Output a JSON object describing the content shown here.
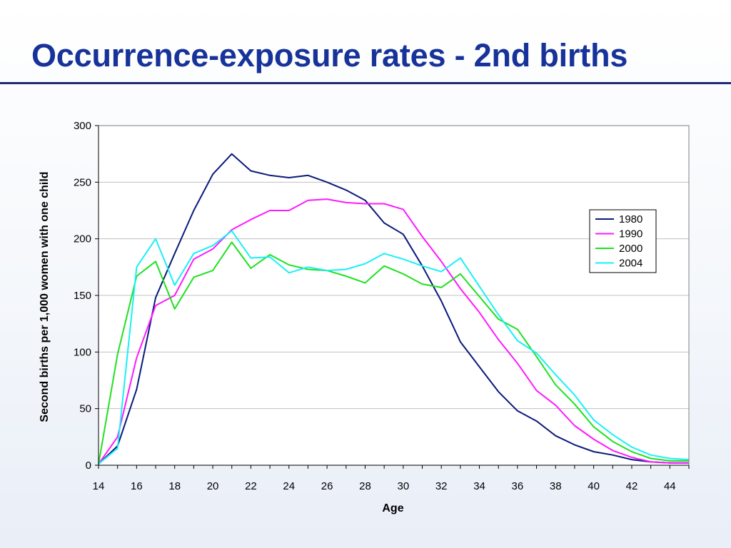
{
  "slide": {
    "title": "Occurrence-exposure rates - 2nd births"
  },
  "colors": {
    "title": "#17339a",
    "rule": "#1c2b78",
    "series_1980": "#0a1a7a",
    "series_1990": "#ff19ff",
    "series_2000": "#1fe11f",
    "series_2004": "#19f0f5"
  },
  "chart_data": {
    "type": "line",
    "title": "",
    "xlabel": "Age",
    "ylabel": "Second births per 1,000 women with one child",
    "xlim": [
      14,
      45
    ],
    "ylim": [
      0,
      300
    ],
    "x_ticks": [
      14,
      16,
      18,
      20,
      22,
      24,
      26,
      28,
      30,
      32,
      34,
      36,
      38,
      40,
      42,
      44
    ],
    "y_ticks": [
      0,
      50,
      100,
      150,
      200,
      250,
      300
    ],
    "grid": "horizontal",
    "legend_position": "right",
    "x": [
      14,
      15,
      16,
      17,
      18,
      19,
      20,
      21,
      22,
      23,
      24,
      25,
      26,
      27,
      28,
      29,
      30,
      31,
      32,
      33,
      34,
      35,
      36,
      37,
      38,
      39,
      40,
      41,
      42,
      43,
      44,
      45
    ],
    "series": [
      {
        "name": "1980",
        "color": "#0a1a7a",
        "values": [
          1,
          17,
          67,
          148,
          187,
          225,
          257,
          275,
          260,
          256,
          254,
          256,
          250,
          243,
          234,
          214,
          204,
          176,
          145,
          109,
          87,
          65,
          48,
          39,
          26,
          18,
          12,
          9,
          5,
          3,
          2,
          2
        ]
      },
      {
        "name": "1990",
        "color": "#ff19ff",
        "values": [
          1,
          25,
          95,
          141,
          150,
          182,
          191,
          208,
          217,
          225,
          225,
          234,
          235,
          232,
          231,
          231,
          226,
          202,
          180,
          156,
          135,
          111,
          90,
          66,
          53,
          35,
          23,
          13,
          7,
          3,
          2,
          2
        ]
      },
      {
        "name": "2000",
        "color": "#1fe11f",
        "values": [
          1,
          98,
          167,
          180,
          138,
          166,
          172,
          197,
          174,
          186,
          177,
          173,
          172,
          167,
          161,
          176,
          169,
          160,
          157,
          169,
          149,
          129,
          120,
          96,
          71,
          54,
          34,
          21,
          12,
          6,
          4,
          4
        ]
      },
      {
        "name": "2004",
        "color": "#19f0f5",
        "values": [
          1,
          15,
          175,
          200,
          159,
          187,
          194,
          207,
          183,
          184,
          170,
          175,
          172,
          173,
          178,
          187,
          182,
          176,
          171,
          183,
          158,
          133,
          110,
          99,
          80,
          62,
          40,
          27,
          16,
          9,
          6,
          5
        ]
      }
    ]
  }
}
